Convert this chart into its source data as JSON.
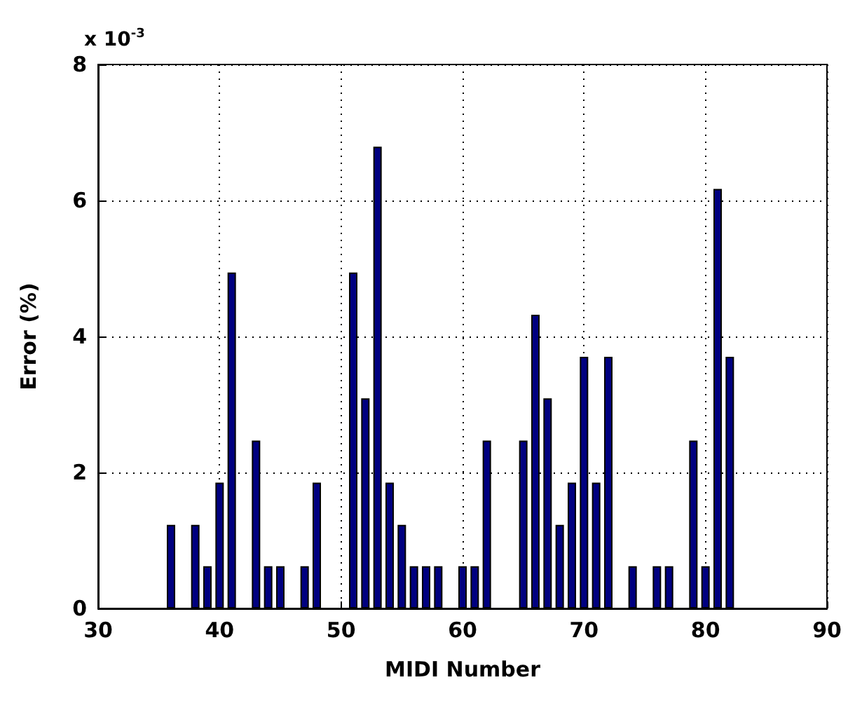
{
  "chart_data": {
    "type": "bar",
    "xlabel": "MIDI Number",
    "ylabel": "Error (%)",
    "annotations": [
      "x 10$^{-3}$"
    ],
    "x": [
      36,
      38,
      39,
      40,
      41,
      43,
      44,
      45,
      47,
      48,
      51,
      52,
      53,
      54,
      55,
      56,
      57,
      58,
      60,
      61,
      62,
      65,
      66,
      67,
      68,
      69,
      70,
      71,
      72,
      74,
      76,
      77,
      79,
      80,
      81,
      82
    ],
    "values": [
      1.23,
      1.23,
      0.62,
      1.85,
      4.94,
      2.47,
      0.62,
      0.62,
      0.62,
      1.85,
      4.94,
      3.09,
      6.79,
      1.85,
      1.23,
      0.62,
      0.62,
      0.62,
      0.62,
      0.62,
      2.47,
      2.47,
      4.32,
      3.09,
      1.23,
      1.85,
      3.7,
      1.85,
      3.7,
      0.62,
      0.62,
      0.62,
      2.47,
      0.62,
      6.17,
      3.7
    ],
    "color": "#000080",
    "xlim": [
      30,
      90
    ],
    "xticks": [
      30,
      40,
      50,
      60,
      70,
      80,
      90
    ],
    "ylim": [
      0,
      8
    ],
    "yticks": [
      0,
      2,
      4,
      6,
      8
    ],
    "grid": true
  }
}
